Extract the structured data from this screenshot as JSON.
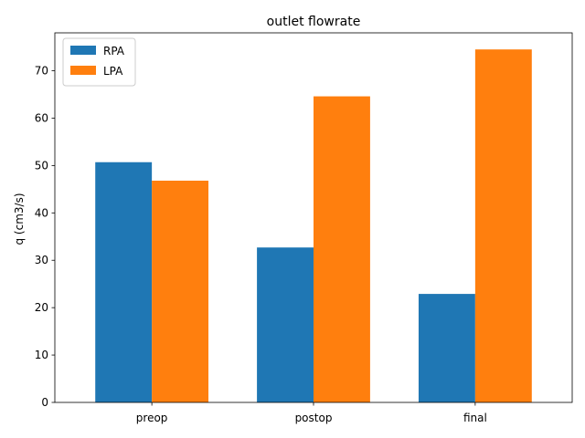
{
  "chart_data": {
    "type": "bar",
    "title": "outlet flowrate",
    "xlabel": "",
    "ylabel": "q (cm3/s)",
    "categories": [
      "preop",
      "postop",
      "final"
    ],
    "series": [
      {
        "name": "RPA",
        "color": "#1f77b4",
        "values": [
          50.7,
          32.7,
          22.9
        ]
      },
      {
        "name": "LPA",
        "color": "#ff7f0e",
        "values": [
          46.8,
          64.6,
          74.5
        ]
      }
    ],
    "ylim": [
      0,
      78
    ],
    "yticks": [
      0,
      10,
      20,
      30,
      40,
      50,
      60,
      70
    ],
    "grid": false,
    "legend_position": "top-left"
  }
}
